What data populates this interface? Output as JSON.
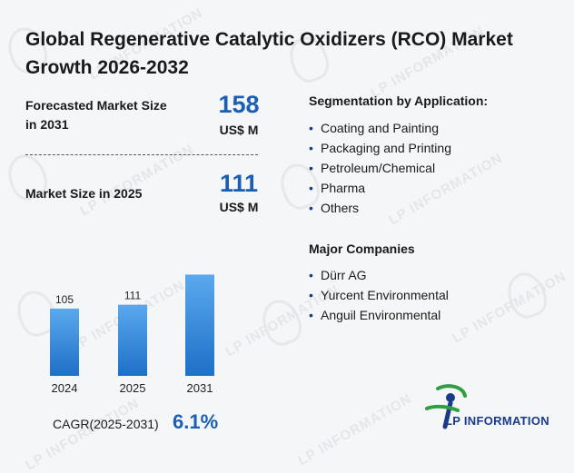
{
  "title": "Global Regenerative Catalytic Oxidizers (RCO) Market Growth 2026-2032",
  "forecast": {
    "label": "Forecasted Market Size in 2031",
    "value": "158",
    "unit": "US$ M"
  },
  "current": {
    "label": "Market Size in 2025",
    "value": "111",
    "unit": "US$ M"
  },
  "segmentation": {
    "title": "Segmentation by Application:",
    "items": [
      "Coating and Painting",
      "Packaging and Printing",
      "Petroleum/Chemical",
      "Pharma",
      "Others"
    ]
  },
  "companies": {
    "title": "Major Companies",
    "items": [
      "Dürr AG",
      "Yurcent Environmental",
      "Anguil Environmental"
    ]
  },
  "cagr": {
    "label": "CAGR(2025-2031)",
    "value": "6.1%"
  },
  "brand": {
    "name": "LP INFORMATION",
    "watermark": "LP INFORMATION"
  },
  "colors": {
    "accent": "#1a5fb4",
    "bar_top": "#5aa9ee",
    "bar_bottom": "#1e6fc8",
    "logo_green": "#2e9e3e",
    "logo_blue": "#1a3a8a"
  },
  "chart_data": {
    "type": "bar",
    "categories": [
      "2024",
      "2025",
      "2031"
    ],
    "values": [
      105,
      111,
      158
    ],
    "title": "",
    "xlabel": "",
    "ylabel": "",
    "ylim": [
      0,
      170
    ],
    "grid": false,
    "legend": "none"
  }
}
